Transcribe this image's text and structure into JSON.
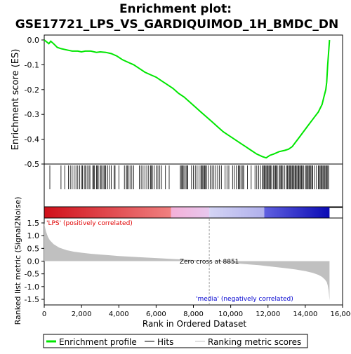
{
  "title_line1": "Enrichment plot:",
  "title_line2": "GSE17721_LPS_VS_GARDIQUIMOD_1H_BMDC_DN",
  "colors": {
    "enrichment": "#00e600",
    "hits": "#000000",
    "metric_fill": "#c0c0c0",
    "zero_cross_line": "#a0a0a0",
    "pos_label": "#e00000",
    "neg_label": "#0000d0",
    "heat_red": "#e8141e",
    "heat_pink": "#f0b4d8",
    "heat_lavender": "#c8c8f0",
    "heat_blue": "#1414c8"
  },
  "labels": {
    "pos_label": "'LPS' (positively correlated)",
    "neg_label": "'media' (negatively correlated)",
    "zero_cross": "Zero cross at 8851"
  },
  "legend": {
    "enrichment": "Enrichment profile",
    "hits": "Hits",
    "metric": "Ranking metric scores"
  },
  "chart_data": {
    "type": "line",
    "x_total": 15300,
    "zero_cross": 8851,
    "heatmap_segments": [
      {
        "start": 0,
        "end": 6800,
        "color": "heat_red"
      },
      {
        "start": 6800,
        "end": 8851,
        "color": "heat_pink"
      },
      {
        "start": 8851,
        "end": 11800,
        "color": "heat_lavender"
      },
      {
        "start": 11800,
        "end": 15300,
        "color": "heat_blue"
      }
    ],
    "es_panel": {
      "ylabel": "Enrichment score (ES)",
      "ylim": [
        -0.5,
        0.0
      ],
      "yticks": [
        0.0,
        -0.1,
        -0.2,
        -0.3,
        -0.4,
        -0.5
      ],
      "ytick_labels": [
        "0.0",
        "-0.1",
        "-0.2",
        "-0.3",
        "-0.4",
        "-0.5"
      ],
      "series": [
        {
          "x": [
            0,
            250,
            350,
            500,
            700,
            900,
            1200,
            1500,
            1800,
            2000,
            2200,
            2500,
            2800,
            3000,
            3300,
            3600,
            3900,
            4200,
            4500,
            4800,
            5100,
            5400,
            5700,
            6000,
            6300,
            6600,
            6900,
            7200,
            7500,
            7800,
            8100,
            8400,
            8700,
            9000,
            9300,
            9600,
            9900,
            10200,
            10500,
            10800,
            11100,
            11400,
            11700,
            11900,
            12100,
            12300,
            12600,
            12900,
            13100,
            13300,
            13500,
            13700,
            13900,
            14100,
            14300,
            14500,
            14700,
            14900,
            15000,
            15100,
            15150,
            15200,
            15250,
            15300
          ],
          "y": [
            0.0,
            -0.015,
            -0.005,
            -0.015,
            -0.03,
            -0.035,
            -0.04,
            -0.045,
            -0.045,
            -0.048,
            -0.045,
            -0.045,
            -0.05,
            -0.048,
            -0.05,
            -0.055,
            -0.065,
            -0.08,
            -0.09,
            -0.1,
            -0.115,
            -0.13,
            -0.14,
            -0.15,
            -0.165,
            -0.18,
            -0.195,
            -0.215,
            -0.23,
            -0.25,
            -0.27,
            -0.29,
            -0.31,
            -0.33,
            -0.35,
            -0.37,
            -0.385,
            -0.4,
            -0.415,
            -0.43,
            -0.445,
            -0.46,
            -0.47,
            -0.475,
            -0.465,
            -0.46,
            -0.45,
            -0.445,
            -0.44,
            -0.43,
            -0.41,
            -0.39,
            -0.37,
            -0.35,
            -0.33,
            -0.31,
            -0.29,
            -0.26,
            -0.23,
            -0.2,
            -0.17,
            -0.1,
            -0.05,
            0.0
          ]
        }
      ],
      "hits": [
        300,
        900,
        1100,
        1300,
        1400,
        1500,
        1600,
        1700,
        1800,
        1900,
        2000,
        2050,
        2150,
        2200,
        2300,
        2400,
        2450,
        2600,
        2650,
        2700,
        2800,
        2850,
        2900,
        3000,
        3050,
        3100,
        3200,
        3250,
        3300,
        3400,
        3500,
        3600,
        3750,
        3800,
        4000,
        4300,
        4400,
        4450,
        4500,
        4600,
        4700,
        4800,
        5100,
        5200,
        5300,
        5400,
        5500,
        5600,
        5700,
        5750,
        5800,
        5900,
        6000,
        6100,
        6200,
        6300,
        6500,
        6700,
        7300,
        7350,
        7400,
        7450,
        7500,
        7600,
        7650,
        7700,
        7900,
        8000,
        8100,
        8200,
        8300,
        8400,
        8450,
        8500,
        8550,
        8600,
        8650,
        8700,
        8800,
        8900,
        9000,
        9100,
        9200,
        9300,
        9400,
        9500,
        9700,
        9800,
        9900,
        10100,
        10200,
        10300,
        10400,
        10450,
        10500,
        10600,
        10650,
        10700,
        10900,
        11100,
        11300,
        11400,
        11500,
        11600,
        11700,
        11750,
        11800,
        11850,
        11900,
        11950,
        12000,
        12050,
        12100,
        12150,
        12200,
        12300,
        12350,
        12400,
        12450,
        12500,
        12600,
        12650,
        12700,
        12750,
        12800,
        12900,
        13000,
        13050,
        13100,
        13150,
        13200,
        13250,
        13300,
        13350,
        13400,
        13450,
        13500,
        13550,
        13600,
        13650,
        13700,
        13750,
        13800,
        13850,
        13900,
        14000,
        14050,
        14100,
        14150,
        14200,
        14250,
        14300,
        14350,
        14400,
        14500,
        14600,
        14700,
        14750,
        14800,
        14850,
        14900,
        14950,
        15000,
        15050,
        15100,
        15150,
        15200,
        15250
      ]
    },
    "metric_panel": {
      "xlabel": "Rank in Ordered Dataset",
      "ylabel": "Ranked list metric (Signal2Noise)",
      "ylim": [
        -1.6,
        1.6
      ],
      "yticks": [
        1.5,
        1.0,
        0.5,
        0.0,
        -0.5,
        -1.0,
        -1.5
      ],
      "ytick_labels": [
        "1.5",
        "1.0",
        "0.5",
        "0.0",
        "-0.5",
        "-1.0",
        "-1.5"
      ],
      "xlim": [
        0,
        16000
      ],
      "xticks": [
        0,
        2000,
        4000,
        6000,
        8000,
        10000,
        12000,
        14000,
        16000
      ],
      "xtick_labels": [
        "0",
        "2,000",
        "4,000",
        "6,000",
        "8,000",
        "10,000",
        "12,000",
        "14,000",
        "16,000"
      ],
      "series": [
        {
          "x": [
            0,
            50,
            100,
            200,
            300,
            500,
            800,
            1200,
            1600,
            2000,
            2500,
            3000,
            3500,
            4000,
            5000,
            6000,
            7000,
            8000,
            8851,
            9500,
            10000,
            10500,
            11000,
            11500,
            12000,
            12500,
            13000,
            13500,
            14000,
            14400,
            14700,
            14900,
            15050,
            15150,
            15200,
            15250,
            15300
          ],
          "y": [
            1.5,
            1.3,
            1.15,
            0.95,
            0.82,
            0.67,
            0.53,
            0.43,
            0.37,
            0.33,
            0.29,
            0.26,
            0.23,
            0.2,
            0.16,
            0.12,
            0.08,
            0.04,
            0.0,
            -0.04,
            -0.07,
            -0.1,
            -0.13,
            -0.16,
            -0.2,
            -0.24,
            -0.28,
            -0.33,
            -0.39,
            -0.46,
            -0.54,
            -0.62,
            -0.72,
            -0.82,
            -0.95,
            -1.15,
            -1.55
          ]
        }
      ]
    }
  }
}
